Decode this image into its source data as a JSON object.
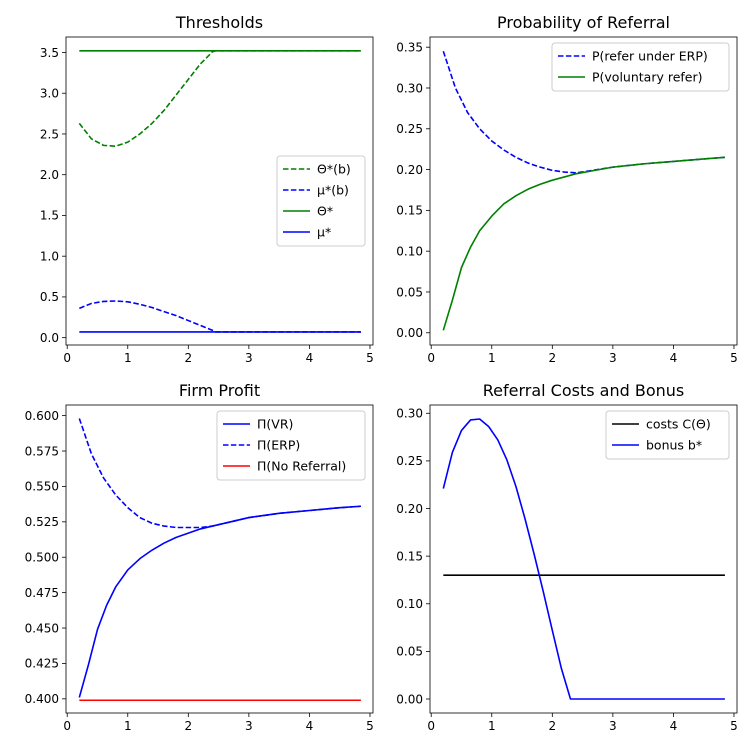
{
  "chart_data": [
    {
      "type": "line",
      "title": "Thresholds",
      "xlim": [
        -0.02,
        5.05
      ],
      "ylim": [
        -0.09,
        3.69
      ],
      "xticks": [
        0,
        1,
        2,
        3,
        4,
        5
      ],
      "xtick_labels": [
        "0",
        "1",
        "2",
        "3",
        "4",
        "5"
      ],
      "yticks": [
        0.0,
        0.5,
        1.0,
        1.5,
        2.0,
        2.5,
        3.0,
        3.5
      ],
      "ytick_labels": [
        "0.0",
        "0.5",
        "1.0",
        "1.5",
        "2.0",
        "2.5",
        "3.0",
        "3.5"
      ],
      "legend_position": "center-right",
      "series": [
        {
          "name": "Θ*(b)",
          "color": "#008000",
          "dash": true,
          "x": [
            0.2,
            0.4,
            0.6,
            0.8,
            1.0,
            1.2,
            1.4,
            1.6,
            1.8,
            2.0,
            2.2,
            2.4,
            2.45,
            3.0,
            4.0,
            4.85
          ],
          "y": [
            2.63,
            2.44,
            2.36,
            2.35,
            2.4,
            2.5,
            2.63,
            2.79,
            2.98,
            3.17,
            3.36,
            3.51,
            3.52,
            3.52,
            3.52,
            3.52
          ]
        },
        {
          "name": "μ*(b)",
          "color": "#0000ff",
          "dash": true,
          "x": [
            0.2,
            0.4,
            0.6,
            0.8,
            1.0,
            1.2,
            1.4,
            1.6,
            1.8,
            2.0,
            2.2,
            2.4,
            2.45,
            3.0,
            4.0,
            4.85
          ],
          "y": [
            0.36,
            0.42,
            0.445,
            0.45,
            0.44,
            0.41,
            0.37,
            0.32,
            0.27,
            0.21,
            0.15,
            0.09,
            0.07,
            0.07,
            0.07,
            0.07
          ]
        },
        {
          "name": "Θ*",
          "color": "#008000",
          "dash": false,
          "x": [
            0.2,
            4.85
          ],
          "y": [
            3.52,
            3.52
          ]
        },
        {
          "name": "μ*",
          "color": "#0000ff",
          "dash": false,
          "x": [
            0.2,
            4.85
          ],
          "y": [
            0.07,
            0.07
          ]
        }
      ]
    },
    {
      "type": "line",
      "title": "Probability of Referral",
      "xlim": [
        -0.02,
        5.05
      ],
      "ylim": [
        -0.015,
        0.3625
      ],
      "xticks": [
        0,
        1,
        2,
        3,
        4,
        5
      ],
      "xtick_labels": [
        "0",
        "1",
        "2",
        "3",
        "4",
        "5"
      ],
      "yticks": [
        0.0,
        0.05,
        0.1,
        0.15,
        0.2,
        0.25,
        0.3,
        0.35
      ],
      "ytick_labels": [
        "0.00",
        "0.05",
        "0.10",
        "0.15",
        "0.20",
        "0.25",
        "0.30",
        "0.35"
      ],
      "legend_position": "top-right",
      "series": [
        {
          "name": "P(refer under ERP)",
          "color": "#0000ff",
          "dash": true,
          "x": [
            0.2,
            0.4,
            0.6,
            0.8,
            1.0,
            1.2,
            1.4,
            1.6,
            1.8,
            2.0,
            2.2,
            2.4,
            3.0,
            3.5,
            4.0,
            4.5,
            4.85
          ],
          "y": [
            0.345,
            0.3,
            0.27,
            0.25,
            0.235,
            0.224,
            0.215,
            0.208,
            0.203,
            0.199,
            0.197,
            0.196,
            0.203,
            0.207,
            0.21,
            0.213,
            0.215
          ]
        },
        {
          "name": "P(voluntary refer)",
          "color": "#008000",
          "dash": false,
          "x": [
            0.2,
            0.35,
            0.5,
            0.65,
            0.8,
            1.0,
            1.2,
            1.4,
            1.6,
            1.8,
            2.0,
            2.2,
            2.4,
            2.7,
            3.0,
            3.5,
            4.0,
            4.5,
            4.85
          ],
          "y": [
            0.003,
            0.04,
            0.08,
            0.105,
            0.125,
            0.143,
            0.158,
            0.168,
            0.176,
            0.182,
            0.187,
            0.191,
            0.195,
            0.199,
            0.203,
            0.207,
            0.21,
            0.213,
            0.215
          ]
        }
      ]
    },
    {
      "type": "line",
      "title": "Firm Profit",
      "xlim": [
        -0.02,
        5.05
      ],
      "ylim": [
        0.39,
        0.6075
      ],
      "xticks": [
        0,
        1,
        2,
        3,
        4,
        5
      ],
      "xtick_labels": [
        "0",
        "1",
        "2",
        "3",
        "4",
        "5"
      ],
      "yticks": [
        0.4,
        0.425,
        0.45,
        0.475,
        0.5,
        0.525,
        0.55,
        0.575,
        0.6
      ],
      "ytick_labels": [
        "0.400",
        "0.425",
        "0.450",
        "0.475",
        "0.500",
        "0.525",
        "0.550",
        "0.575",
        "0.600"
      ],
      "legend_position": "top-right",
      "series": [
        {
          "name": "Π(VR)",
          "color": "#0000ff",
          "dash": false,
          "x": [
            0.2,
            0.35,
            0.5,
            0.65,
            0.8,
            1.0,
            1.2,
            1.4,
            1.6,
            1.8,
            2.0,
            2.2,
            2.4,
            2.7,
            3.0,
            3.5,
            4.0,
            4.5,
            4.85
          ],
          "y": [
            0.401,
            0.424,
            0.449,
            0.466,
            0.479,
            0.491,
            0.499,
            0.505,
            0.51,
            0.514,
            0.517,
            0.52,
            0.522,
            0.525,
            0.528,
            0.531,
            0.533,
            0.535,
            0.536
          ]
        },
        {
          "name": "Π(ERP)",
          "color": "#0000ff",
          "dash": true,
          "x": [
            0.2,
            0.4,
            0.6,
            0.8,
            1.0,
            1.2,
            1.4,
            1.6,
            1.8,
            2.0,
            2.2,
            2.4,
            2.7,
            3.0,
            3.5,
            4.0,
            4.5,
            4.85
          ],
          "y": [
            0.598,
            0.573,
            0.556,
            0.544,
            0.535,
            0.528,
            0.524,
            0.522,
            0.521,
            0.521,
            0.521,
            0.522,
            0.525,
            0.528,
            0.531,
            0.533,
            0.535,
            0.536
          ]
        },
        {
          "name": "Π(No Referral)",
          "color": "#ff0000",
          "dash": false,
          "x": [
            0.2,
            4.85
          ],
          "y": [
            0.399,
            0.399
          ]
        }
      ]
    },
    {
      "type": "line",
      "title": "Referral Costs and Bonus",
      "xlim": [
        -0.02,
        5.05
      ],
      "ylim": [
        -0.0147,
        0.3087
      ],
      "xticks": [
        0,
        1,
        2,
        3,
        4,
        5
      ],
      "xtick_labels": [
        "0",
        "1",
        "2",
        "3",
        "4",
        "5"
      ],
      "yticks": [
        0.0,
        0.05,
        0.1,
        0.15,
        0.2,
        0.25,
        0.3
      ],
      "ytick_labels": [
        "0.00",
        "0.05",
        "0.10",
        "0.15",
        "0.20",
        "0.25",
        "0.30"
      ],
      "legend_position": "top-right",
      "series": [
        {
          "name": "costs C(Θ)",
          "color": "#000000",
          "dash": false,
          "x": [
            0.2,
            4.85
          ],
          "y": [
            0.13,
            0.13
          ]
        },
        {
          "name": "bonus b*",
          "color": "#0000ff",
          "dash": false,
          "x": [
            0.2,
            0.35,
            0.5,
            0.65,
            0.8,
            0.95,
            1.1,
            1.25,
            1.4,
            1.55,
            1.7,
            1.85,
            2.0,
            2.15,
            2.3,
            2.45,
            2.6,
            3.0,
            4.0,
            4.85
          ],
          "y": [
            0.221,
            0.259,
            0.282,
            0.293,
            0.294,
            0.286,
            0.272,
            0.251,
            0.223,
            0.189,
            0.152,
            0.113,
            0.072,
            0.032,
            0.0,
            0.0,
            0.0,
            0.0,
            0.0,
            0.0
          ]
        }
      ]
    }
  ]
}
